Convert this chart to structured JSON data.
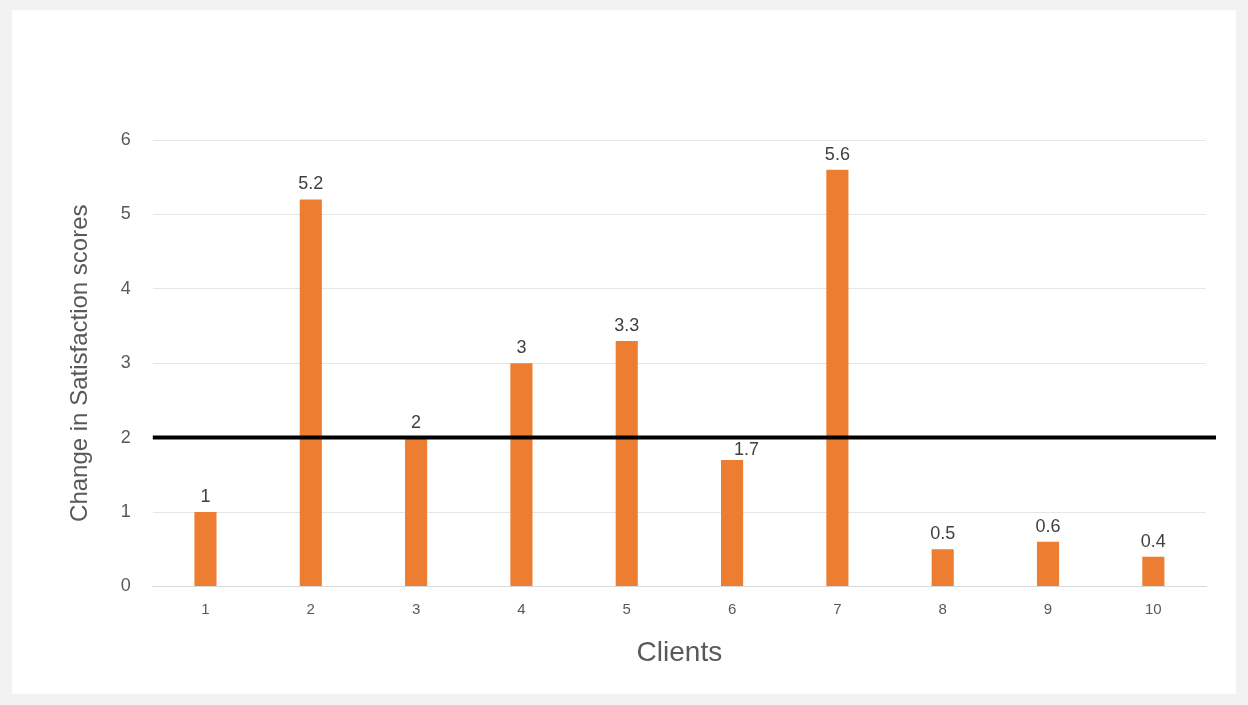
{
  "chart_data": {
    "type": "bar",
    "xlabel": "Clients",
    "ylabel": "Change in Satisfaction scores",
    "categories": [
      "1",
      "2",
      "3",
      "4",
      "5",
      "6",
      "7",
      "8",
      "9",
      "10"
    ],
    "values": [
      1,
      5.2,
      2,
      3,
      3.3,
      1.7,
      5.6,
      0.5,
      0.6,
      0.4
    ],
    "color": "#ed7d31",
    "ylim": [
      0,
      6
    ],
    "yticks": [
      0,
      1,
      2,
      3,
      4,
      5,
      6
    ],
    "grid": "y",
    "data_labels": true,
    "legend": false,
    "ref_lines": [
      {
        "axis": "y",
        "value": 2,
        "color": "#000000"
      }
    ]
  }
}
